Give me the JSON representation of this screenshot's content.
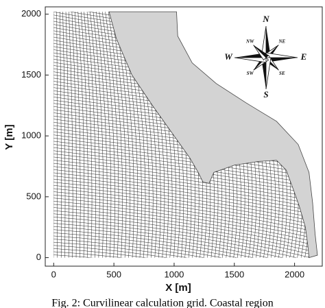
{
  "chart_data": {
    "type": "grid-map",
    "x_label": "X [m]",
    "y_label": "Y [m]",
    "xlim": [
      -70,
      2230
    ],
    "ylim": [
      -70,
      2060
    ],
    "xticks": [
      0,
      500,
      1000,
      1500,
      2000
    ],
    "yticks": [
      0,
      500,
      1000,
      1500,
      2000
    ],
    "compass": [
      "N",
      "NE",
      "E",
      "SE",
      "S",
      "SW",
      "W",
      "NW"
    ],
    "caption": "Fig. 2: Curvilinear calculation grid. Coastal region"
  }
}
